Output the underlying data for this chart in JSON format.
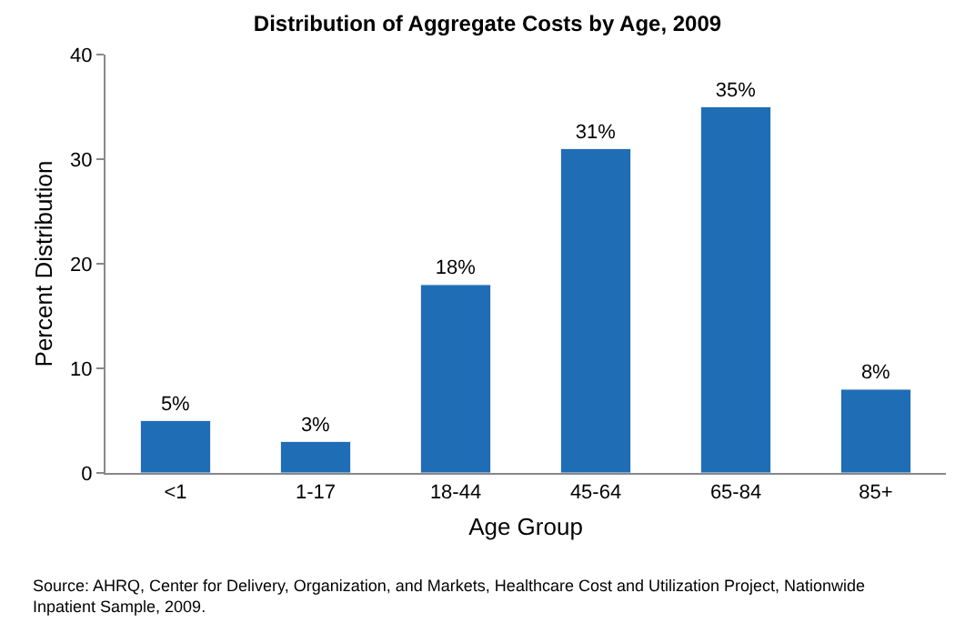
{
  "chart_data": {
    "type": "bar",
    "title": "Distribution of Aggregate Costs by Age, 2009",
    "xlabel": "Age Group",
    "ylabel": "Percent Distribution",
    "categories": [
      "<1",
      "1-17",
      "18-44",
      "45-64",
      "65-84",
      "85+"
    ],
    "values": [
      5,
      3,
      18,
      31,
      35,
      8
    ],
    "value_labels": [
      "5%",
      "3%",
      "18%",
      "31%",
      "35%",
      "8%"
    ],
    "color": "#1f6db5",
    "ylim": [
      0,
      40
    ],
    "yticks": [
      0,
      10,
      20,
      30,
      40
    ],
    "legend": false,
    "annotations": [
      "Source: AHRQ, Center for Delivery, Organization, and Markets, Healthcare Cost and Utilization Project, Nationwide\nInpatient Sample, 2009."
    ]
  }
}
